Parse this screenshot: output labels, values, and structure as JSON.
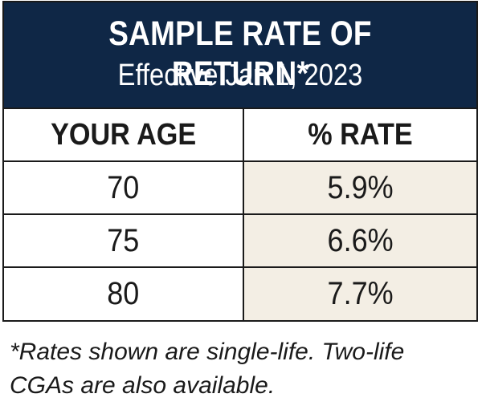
{
  "header": {
    "title": "SAMPLE RATE OF RETURN*",
    "subtitle": "Effective Jan 1, 2023"
  },
  "table": {
    "columns": [
      "YOUR AGE",
      "% RATE"
    ],
    "rows": [
      {
        "age": "70",
        "rate": "5.9%"
      },
      {
        "age": "75",
        "rate": "6.6%"
      },
      {
        "age": "80",
        "rate": "7.7%"
      }
    ]
  },
  "footnote": {
    "line1": "*Rates shown are single-life. Two-life",
    "line2": "CGAs are also available."
  },
  "colors": {
    "header_background": "#0f2746",
    "rate_cell_background": "#f3eee4",
    "border": "#1a1a1a"
  }
}
